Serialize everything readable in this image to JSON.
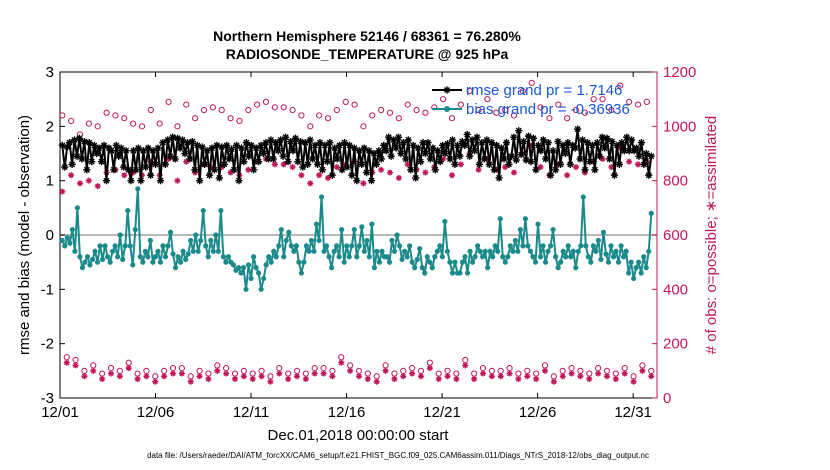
{
  "chart_data": {
    "type": "line",
    "title_line1": "Northern Hemisphere 52146 / 68361 = 76.280%",
    "title_line2": "RADIOSONDE_TEMPERATURE @ 925 hPa",
    "xlabel": "Dec.01,2018 00:00:00 start",
    "ylabel_left": "rmse and bias (model - observation)",
    "ylabel_right": "# of obs: o=possible; ∗=assimilated",
    "xlim": [
      0,
      31.25
    ],
    "ylim_left": [
      -3,
      3
    ],
    "ylim_right": [
      0,
      1200
    ],
    "x_ticks": [
      0,
      5,
      10,
      15,
      20,
      25,
      30
    ],
    "x_tick_labels": [
      "12/01",
      "12/06",
      "12/11",
      "12/16",
      "12/21",
      "12/26",
      "12/31"
    ],
    "y_ticks_left": [
      -3,
      -2,
      -1,
      0,
      1,
      2,
      3
    ],
    "y_tick_labels_left": [
      "-3",
      "-2",
      "-1",
      "0",
      "1",
      "2",
      "3"
    ],
    "y_ticks_right": [
      0,
      200,
      400,
      600,
      800,
      1000,
      1200
    ],
    "y_tick_labels_right": [
      "0",
      "200",
      "400",
      "600",
      "800",
      "1000",
      "1200"
    ],
    "footer": "data file: /Users/raeder/DAI/ATM_forcXX/CAM6_setup/f.e21.FHIST_BGC.f09_025.CAM6assim.011/Diags_NTrS_2018-12/obs_diag_output.nc",
    "colors": {
      "rmse": "#000000",
      "bias": "#1a8a8a",
      "obs_count": "#c2185b",
      "zero_line": "#b8b8b8",
      "legend_text": "#1a56d6"
    },
    "legend": [
      {
        "label": "rmse grand pr = 1.7146",
        "series": "rmse"
      },
      {
        "label": "bias grand pr = -0.36936",
        "series": "bias"
      }
    ],
    "series": [
      {
        "name": "rmse",
        "axis": "left",
        "style": "line-asterisk",
        "values": [
          1.65,
          1.25,
          1.62,
          1.7,
          1.3,
          1.75,
          1.45,
          1.78,
          1.4,
          1.72,
          1.2,
          1.7,
          1.35,
          1.65,
          1.5,
          1.6,
          1.35,
          1.65,
          1.0,
          1.6,
          1.55,
          1.2,
          1.65,
          1.45,
          1.6,
          1.25,
          1.55,
          1.2,
          1.0,
          1.55,
          1.2,
          1.6,
          1.0,
          1.55,
          1.25,
          1.6,
          1.1,
          1.55,
          1.3,
          1.6,
          1.0,
          1.7,
          1.3,
          1.75,
          1.45,
          1.8,
          1.4,
          1.78,
          1.6,
          1.75,
          1.5,
          1.7,
          1.4,
          1.72,
          1.2,
          1.65,
          1.0,
          1.62,
          1.3,
          1.55,
          1.1,
          1.6,
          1.2,
          1.65,
          1.05,
          1.62,
          1.3,
          1.65,
          1.4,
          1.58,
          1.2,
          1.65,
          1.0,
          1.6,
          1.35,
          1.7,
          1.45,
          1.65,
          1.2,
          1.6,
          1.35,
          1.65,
          1.5,
          1.7,
          1.4,
          1.75,
          1.4,
          1.7,
          1.55,
          1.75,
          1.45,
          1.8,
          1.35,
          1.72,
          1.55,
          1.78,
          1.35,
          1.72,
          1.25,
          1.7,
          1.3,
          1.75,
          1.4,
          1.65,
          1.3,
          1.7,
          1.2,
          1.65,
          1.35,
          1.7,
          1.1,
          1.6,
          1.4,
          1.65,
          1.2,
          1.7,
          1.25,
          1.65,
          1.1,
          1.6,
          1.0,
          1.55,
          1.3,
          1.6,
          1.15,
          1.55,
          1.0,
          1.5,
          1.3,
          1.55,
          1.4,
          1.65,
          1.55,
          1.8,
          1.45,
          1.75,
          1.6,
          1.8,
          1.5,
          1.7,
          1.4,
          1.75,
          1.2,
          1.65,
          1.05,
          1.6,
          1.35,
          1.7,
          1.5,
          1.7,
          1.4,
          1.6,
          1.2,
          1.55,
          1.35,
          1.65,
          1.5,
          1.68,
          1.4,
          1.75,
          1.3,
          1.65,
          1.45,
          1.72,
          1.65,
          1.85,
          1.45,
          1.75,
          1.55,
          1.8,
          1.3,
          1.7,
          1.4,
          1.75,
          1.3,
          1.7,
          1.2,
          1.65,
          1.05,
          1.6,
          1.4,
          1.7,
          1.3,
          1.45,
          1.8,
          1.38,
          1.92,
          1.48,
          1.72,
          1.38,
          1.82,
          1.35,
          1.78,
          1.2,
          1.65,
          1.55,
          1.75,
          1.4,
          1.7,
          1.1,
          1.55,
          1.2,
          1.72,
          1.3,
          1.65,
          1.5,
          1.7,
          1.3,
          1.65,
          1.6,
          1.95,
          1.4,
          1.75,
          1.2,
          1.7,
          1.35,
          1.65,
          1.2,
          1.7,
          1.45,
          1.8,
          1.6,
          1.78,
          1.4,
          1.72,
          1.1,
          1.65,
          1.3,
          1.7,
          1.55,
          1.8,
          1.55,
          1.75,
          1.55,
          1.6,
          1.45,
          1.7,
          1.3,
          1.5,
          1.1,
          1.45
        ]
      },
      {
        "name": "bias",
        "axis": "left",
        "style": "line-dot",
        "values": [
          -0.1,
          -0.2,
          -0.05,
          -0.15,
          0.1,
          -0.3,
          0.5,
          -0.4,
          -0.6,
          -0.5,
          -0.4,
          -0.55,
          -0.45,
          -0.3,
          -0.5,
          -0.2,
          -0.45,
          -0.2,
          -0.4,
          -0.5,
          -0.3,
          -0.2,
          -0.4,
          0.0,
          -0.45,
          -0.2,
          0.45,
          -0.2,
          -0.55,
          0.1,
          0.85,
          -0.4,
          -0.5,
          -0.3,
          -0.4,
          -0.1,
          -0.5,
          -0.4,
          -0.3,
          -0.5,
          -0.2,
          -0.4,
          -0.2,
          0.05,
          -0.35,
          -0.6,
          -0.4,
          -0.5,
          -0.3,
          -0.45,
          -0.35,
          -0.1,
          -0.3,
          0.0,
          -0.3,
          -0.1,
          0.45,
          -0.2,
          -0.4,
          -0.1,
          -0.3,
          0.0,
          -0.3,
          0.45,
          -0.4,
          -0.5,
          -0.4,
          -0.5,
          -0.55,
          -0.65,
          -0.6,
          -0.7,
          -0.6,
          -1.0,
          -0.55,
          -0.8,
          -0.4,
          -0.6,
          -0.7,
          -1.0,
          -0.8,
          -0.55,
          -0.4,
          -0.5,
          -0.3,
          -0.4,
          -0.2,
          0.1,
          -0.4,
          -0.1,
          0.05,
          -0.2,
          -0.3,
          -0.2,
          -0.5,
          -0.7,
          -0.5,
          -0.2,
          -0.3,
          -0.1,
          -0.3,
          0.2,
          -0.1,
          0.7,
          -0.3,
          -0.2,
          -0.4,
          -0.6,
          -0.3,
          -0.2,
          -0.4,
          0.1,
          -0.5,
          -0.2,
          -0.4,
          -0.2,
          0.1,
          -0.4,
          -0.2,
          0.15,
          -0.3,
          -0.1,
          -0.4,
          0.2,
          -0.6,
          -0.3,
          -0.5,
          -0.3,
          -0.4,
          -0.4,
          -0.5,
          -0.1,
          -0.3,
          0.0,
          -0.2,
          -0.45,
          -0.3,
          -0.4,
          -0.2,
          -0.5,
          -0.6,
          -0.45,
          -0.25,
          -0.6,
          -0.7,
          -0.4,
          -0.5,
          -0.6,
          -0.4,
          -0.3,
          -0.2,
          -0.4,
          0.25,
          -0.3,
          -0.5,
          -0.7,
          -0.5,
          -0.7,
          -0.7,
          -0.5,
          -0.4,
          -0.7,
          -0.3,
          -0.5,
          -0.4,
          -0.2,
          -0.3,
          -0.4,
          -0.3,
          -0.6,
          -0.3,
          -0.4,
          -0.2,
          -0.3,
          0.3,
          -0.4,
          -0.5,
          -0.4,
          -0.2,
          -0.3,
          -0.1,
          -0.3,
          0.1,
          -0.2,
          0.3,
          -0.2,
          -0.3,
          -0.4,
          -0.5,
          0.2,
          -0.4,
          -0.2,
          -0.5,
          -0.3,
          -0.2,
          0.1,
          -0.4,
          -0.6,
          -0.5,
          -0.3,
          -0.4,
          -0.2,
          -0.4,
          -0.3,
          -0.6,
          -0.3,
          -0.2,
          0.7,
          -0.2,
          -0.4,
          -0.5,
          -0.2,
          -0.3,
          -0.1,
          -0.45,
          0.05,
          -0.35,
          -0.5,
          -0.2,
          -0.4,
          -0.3,
          -0.5,
          -0.2,
          -0.4,
          -0.3,
          -0.7,
          -0.5,
          -0.8,
          -0.6,
          -0.5,
          -0.7,
          -0.4,
          -0.6,
          -0.3,
          0.4
        ]
      },
      {
        "name": "obs_possible",
        "axis": "right",
        "style": "circle",
        "values": [
          1040,
          150,
          1020,
          140,
          970,
          100,
          1010,
          120,
          1000,
          90,
          1050,
          110,
          1040,
          100,
          1030,
          130,
          1010,
          90,
          1000,
          100,
          1060,
          80,
          1010,
          100,
          1090,
          110,
          1000,
          110,
          1080,
          80,
          1030,
          100,
          1060,
          90,
          1070,
          120,
          1060,
          110,
          1030,
          90,
          1020,
          100,
          1060,
          90,
          1080,
          100,
          1090,
          80,
          1070,
          110,
          1070,
          90,
          1060,
          100,
          1040,
          90,
          1000,
          110,
          1040,
          110,
          1030,
          100,
          1060,
          150,
          1090,
          120,
          1080,
          100,
          1000,
          90,
          1040,
          80,
          1060,
          120,
          1050,
          90,
          1030,
          100,
          1080,
          110,
          1060,
          100,
          1050,
          130,
          1070,
          90,
          1100,
          100,
          1030,
          90,
          1080,
          140,
          1130,
          90,
          1060,
          110,
          1100,
          100,
          1050,
          100,
          1060,
          110,
          1040,
          90,
          1130,
          100,
          1160,
          90,
          1070,
          120,
          1030,
          80,
          1080,
          100,
          1030,
          110,
          1060,
          100,
          1050,
          90,
          1100,
          110,
          1100,
          100,
          1060,
          90,
          1150,
          110,
          1090,
          80,
          1080,
          120,
          1090,
          100
        ]
      },
      {
        "name": "obs_assimilated",
        "axis": "right",
        "style": "asterisk",
        "values": [
          760,
          130,
          820,
          120,
          790,
          80,
          800,
          100,
          780,
          70,
          830,
          90,
          840,
          80,
          820,
          110,
          830,
          70,
          820,
          80,
          870,
          60,
          820,
          80,
          880,
          90,
          800,
          90,
          870,
          60,
          830,
          80,
          860,
          70,
          850,
          100,
          850,
          90,
          830,
          70,
          820,
          80,
          840,
          70,
          870,
          80,
          880,
          60,
          860,
          90,
          860,
          70,
          850,
          80,
          820,
          70,
          790,
          90,
          820,
          90,
          810,
          80,
          850,
          130,
          860,
          100,
          870,
          80,
          790,
          70,
          830,
          60,
          840,
          100,
          830,
          70,
          810,
          80,
          860,
          90,
          840,
          80,
          830,
          110,
          850,
          70,
          880,
          80,
          820,
          70,
          860,
          120,
          900,
          70,
          840,
          90,
          880,
          80,
          840,
          80,
          850,
          90,
          830,
          70,
          900,
          80,
          930,
          70,
          850,
          100,
          820,
          60,
          860,
          80,
          820,
          90,
          850,
          80,
          830,
          70,
          870,
          90,
          880,
          80,
          850,
          70,
          920,
          90,
          870,
          60,
          860,
          100,
          870,
          80
        ]
      }
    ]
  }
}
